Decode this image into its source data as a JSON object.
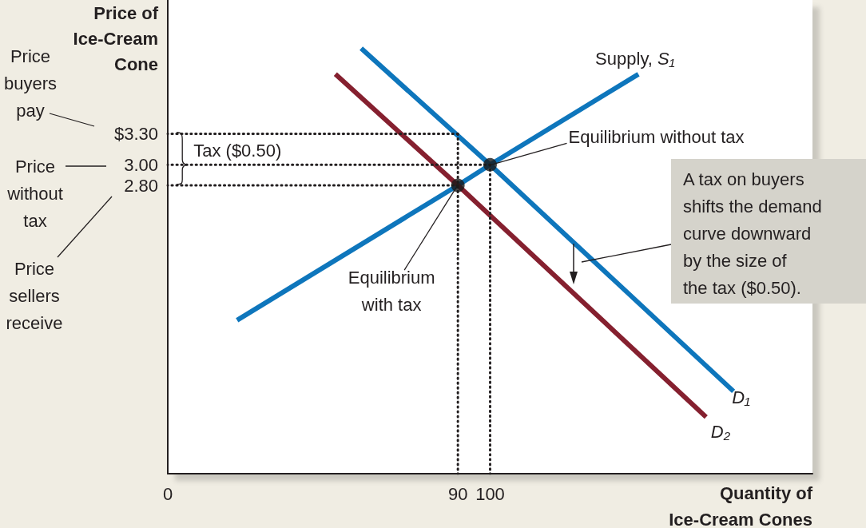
{
  "chart_data": {
    "type": "line",
    "xlabel": "Quantity of\nIce-Cream Cones",
    "ylabel": "Price of\nIce-Cream\nCone",
    "xlim": [
      0,
      200
    ],
    "ylim": [
      0,
      4.6
    ],
    "xticks": [
      0,
      90,
      100
    ],
    "yticks": [
      {
        "value": 2.8,
        "label": "2.80"
      },
      {
        "value": 3,
        "label": "3.00"
      },
      {
        "value": 3.3,
        "label": "$3.30"
      }
    ],
    "series": [
      {
        "color": "#231f20",
        "line_style": "dotted",
        "marker": "none",
        "x": [
          0,
          90
        ],
        "values": [
          3.3,
          3.3
        ]
      },
      {
        "color": "#231f20",
        "line_style": "dotted",
        "marker": "none",
        "x": [
          0,
          100
        ],
        "values": [
          3,
          3
        ]
      },
      {
        "color": "#231f20",
        "line_style": "dotted",
        "marker": "none",
        "x": [
          0,
          90
        ],
        "values": [
          2.8,
          2.8
        ]
      },
      {
        "color": "#231f20",
        "line_style": "dotted",
        "marker": "none",
        "x": [
          90,
          90
        ],
        "values": [
          0,
          3.3
        ]
      },
      {
        "color": "#231f20",
        "line_style": "dotted",
        "marker": "none",
        "x": [
          100,
          100
        ],
        "values": [
          0,
          3
        ]
      },
      {
        "name": "Supply, S₁",
        "color": "#0e76bc",
        "line_style": "solid",
        "marker": "none",
        "x": [
          21.5,
          90,
          100,
          146
        ],
        "values": [
          1.49,
          2.8,
          3,
          3.88
        ]
      },
      {
        "name": "D₁",
        "color": "#0e76bc",
        "line_style": "solid",
        "marker": "none",
        "x": [
          60,
          100,
          175.5
        ],
        "values": [
          4.13,
          3,
          0.8
        ]
      },
      {
        "name": "D₂",
        "color": "#85202f",
        "line_style": "solid",
        "marker": "none",
        "x": [
          52,
          90,
          167
        ],
        "values": [
          3.88,
          2.8,
          0.55
        ]
      },
      {
        "type": "scatter",
        "color": "#1a1a1a",
        "marker": "circle",
        "x": [
          90,
          100
        ],
        "values": [
          2.8,
          3
        ]
      }
    ],
    "annotations": [
      "Price\nbuyers\npay",
      "Price\nwithout\ntax",
      "Price\nsellers\nreceive",
      {
        "text": "Tax ($0.50)",
        "x": 6,
        "y": 3
      },
      {
        "text": "Equilibrium without tax",
        "x": 100,
        "y": 3
      },
      {
        "text": "Equilibrium\nwith tax",
        "x": 90,
        "y": 2.8
      },
      "A tax on buyers\nshifts the demand\ncurve downward\nby the size of\nthe tax ($0.50)."
    ]
  }
}
